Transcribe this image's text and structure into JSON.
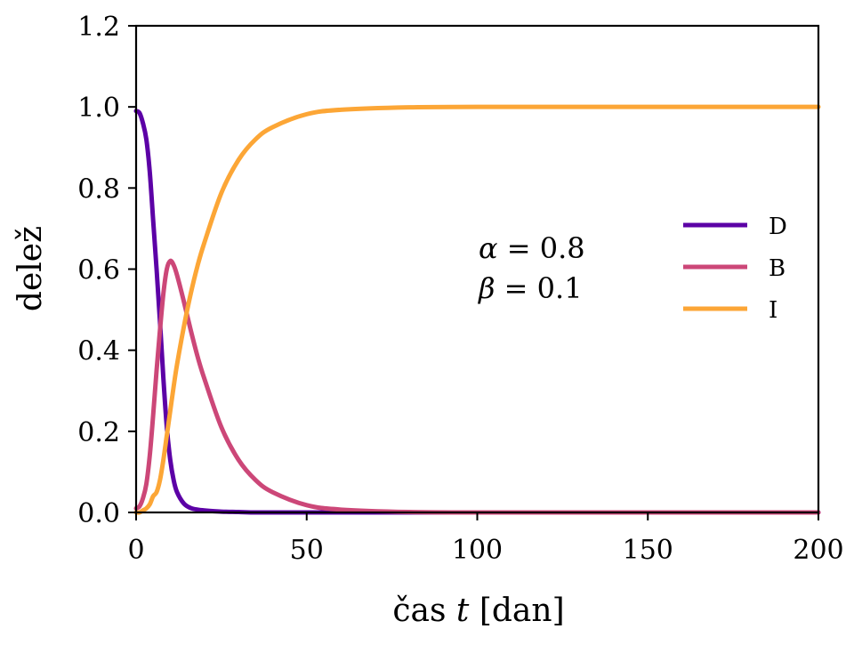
{
  "chart_data": {
    "type": "line",
    "title": "",
    "xlabel": "čas t [dan]",
    "xlabel_parts": {
      "word": "čas",
      "var": "t",
      "unit": "[dan]"
    },
    "ylabel": "delež",
    "xlim": [
      0,
      200
    ],
    "ylim": [
      0,
      1.2
    ],
    "xticks": [
      0,
      50,
      100,
      150,
      200
    ],
    "xtick_labels": [
      "0",
      "50",
      "100",
      "150",
      "200"
    ],
    "yticks": [
      0,
      0.2,
      0.4,
      0.6,
      0.8,
      1.0,
      1.2
    ],
    "ytick_labels": [
      "0.0",
      "0.2",
      "0.4",
      "0.6",
      "0.8",
      "1.0",
      "1.2"
    ],
    "grid": false,
    "legend_position": "right",
    "annotations": [
      {
        "symbol": "α",
        "text": " = 0.8"
      },
      {
        "symbol": "β",
        "text": " = 0.1"
      }
    ],
    "x": [
      0,
      1,
      2,
      3,
      4,
      5,
      6,
      7,
      8,
      9,
      10,
      11,
      12,
      14,
      16,
      18,
      20,
      25,
      30,
      35,
      40,
      50,
      60,
      80,
      100,
      150,
      200
    ],
    "series": [
      {
        "name": "D",
        "color": "#5c01a6",
        "values": [
          0.99,
          0.985,
          0.96,
          0.92,
          0.84,
          0.72,
          0.6,
          0.47,
          0.33,
          0.21,
          0.13,
          0.08,
          0.05,
          0.022,
          0.011,
          0.007,
          0.005,
          0.002,
          0.001,
          0,
          0,
          0,
          0,
          0,
          0,
          0,
          0
        ]
      },
      {
        "name": "B",
        "color": "#cc4778",
        "values": [
          0.01,
          0.015,
          0.035,
          0.07,
          0.14,
          0.24,
          0.35,
          0.45,
          0.54,
          0.6,
          0.62,
          0.61,
          0.585,
          0.52,
          0.45,
          0.385,
          0.33,
          0.21,
          0.13,
          0.08,
          0.05,
          0.018,
          0.007,
          0.001,
          0,
          0,
          0
        ]
      },
      {
        "name": "I",
        "color": "#fca636",
        "values": [
          0,
          0,
          0.005,
          0.01,
          0.02,
          0.04,
          0.05,
          0.08,
          0.13,
          0.19,
          0.25,
          0.31,
          0.365,
          0.458,
          0.539,
          0.608,
          0.665,
          0.788,
          0.869,
          0.92,
          0.95,
          0.982,
          0.993,
          0.999,
          1,
          1,
          1
        ]
      }
    ]
  }
}
